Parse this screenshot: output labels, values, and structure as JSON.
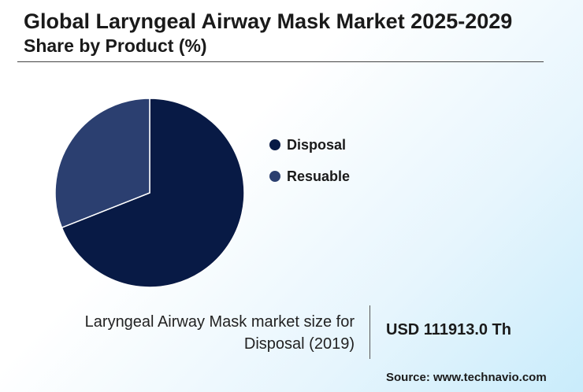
{
  "header": {
    "title": "Global Laryngeal Airway Mask Market 2025-2029",
    "subtitle": "Share by Product (%)"
  },
  "chart_data": {
    "type": "pie",
    "categories": [
      "Disposal",
      "Resuable"
    ],
    "values": [
      69,
      31
    ],
    "colors": [
      "#081a45",
      "#2b3f70"
    ],
    "legend_position": "right"
  },
  "highlight": {
    "caption": "Laryngeal Airway Mask market size for Disposal (2019)",
    "value": "USD 111913.0 Th"
  },
  "footer": {
    "source": "Source: www.technavio.com"
  }
}
